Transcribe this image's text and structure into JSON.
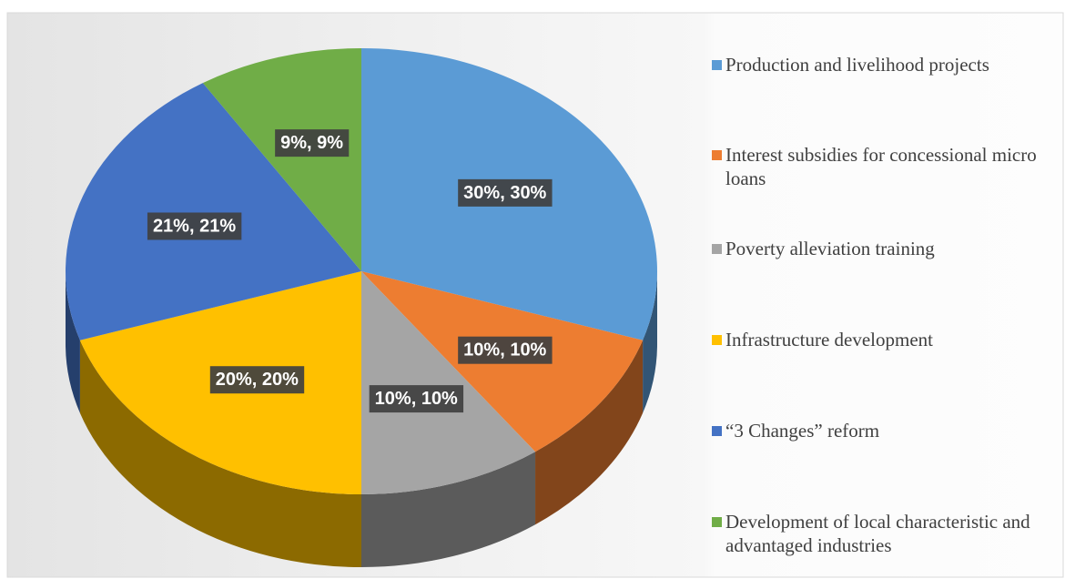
{
  "chart_data": {
    "type": "pie",
    "categories": [
      "Production and livelihood projects",
      "Interest subsidies for concessional micro loans",
      "Poverty alleviation training",
      "Infrastructure development",
      "“3 Changes” reform",
      "Development of local characteristic and advantaged industries"
    ],
    "values": [
      30,
      10,
      10,
      20,
      21,
      9
    ],
    "value_labels": [
      "30%, 30%",
      "10%, 10%",
      "10%, 10%",
      "20%, 20%",
      "21%, 21%",
      "9%, 9%"
    ],
    "colors": [
      "#5b9bd5",
      "#ed7d31",
      "#a5a5a5",
      "#ffc000",
      "#4472c4",
      "#70ad47"
    ],
    "legend": "right"
  }
}
